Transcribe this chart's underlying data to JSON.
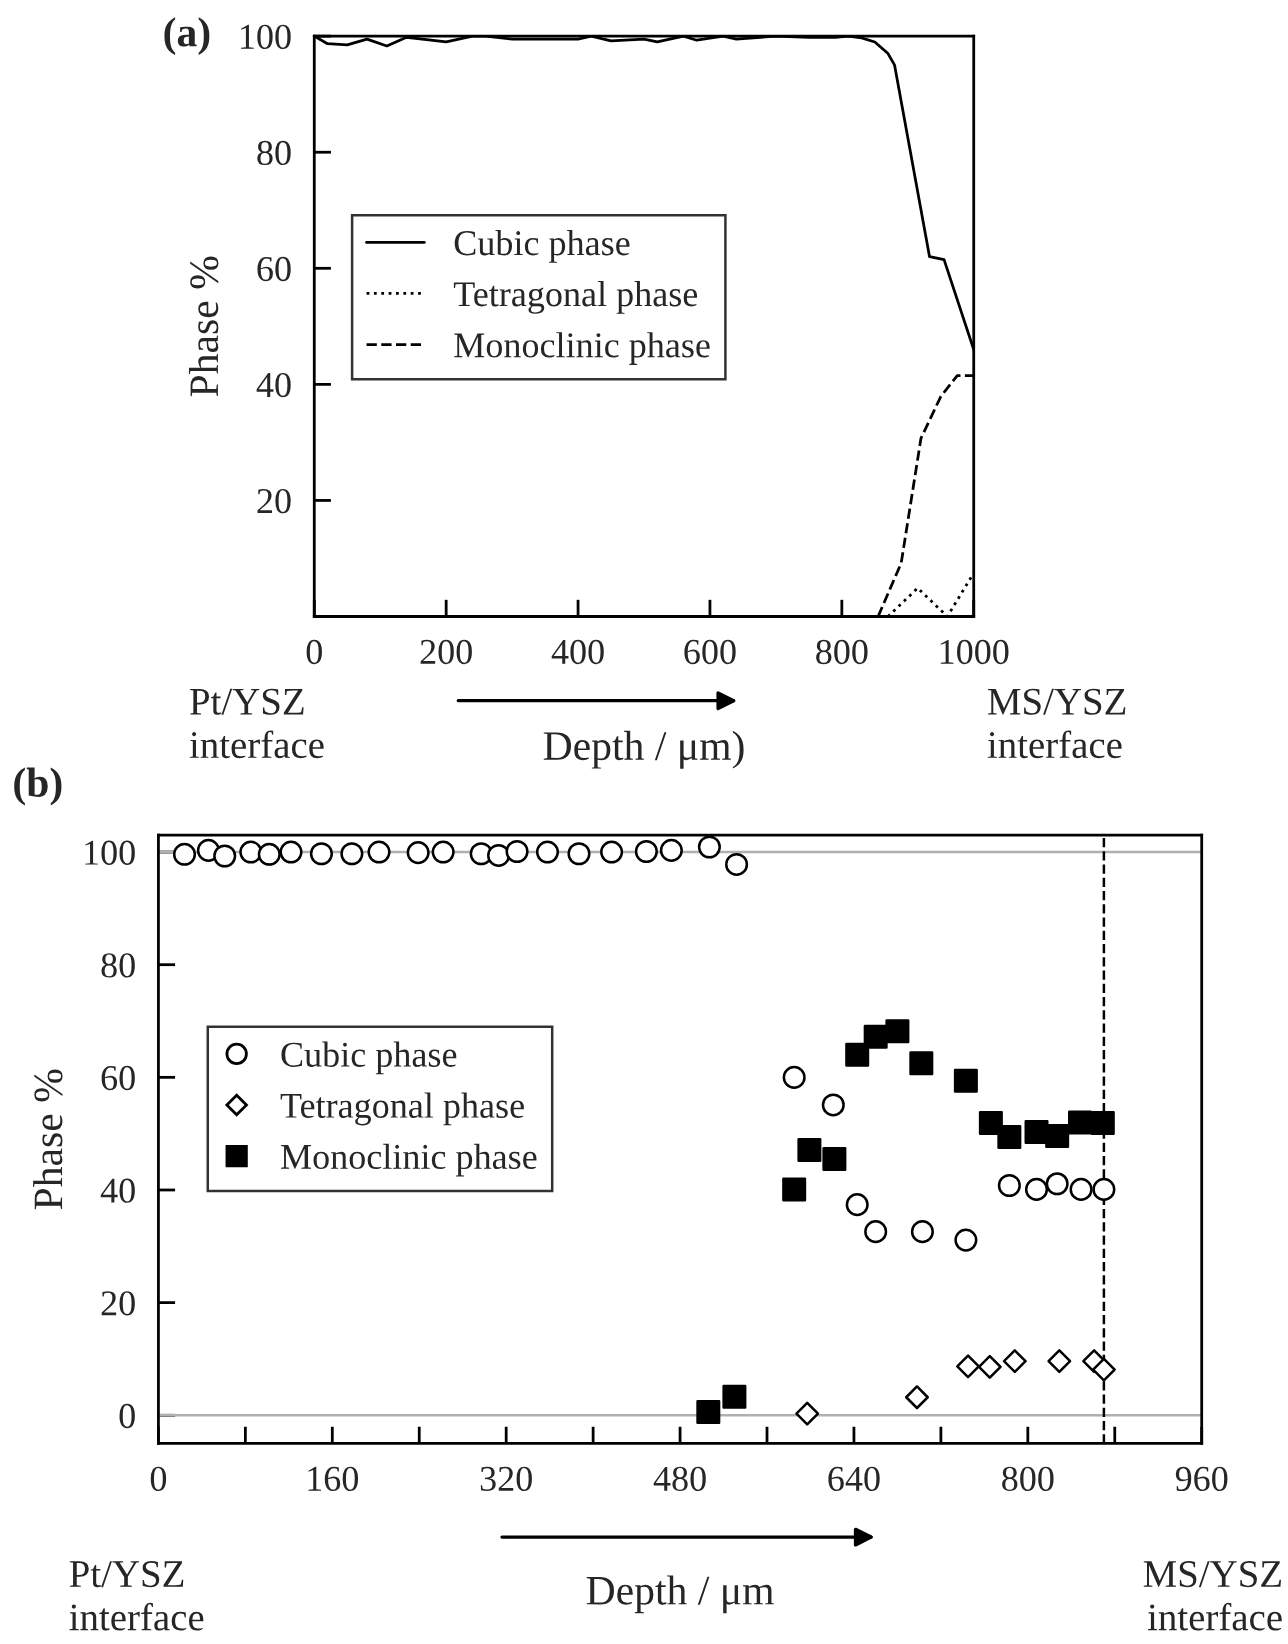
{
  "chart_data": [
    {
      "type": "line",
      "title": "(a)",
      "xlabel": "Depth / μm)",
      "ylabel": "Phase %",
      "annotations": [
        "Pt/YSZ\ninterface",
        "MS/YSZ\ninterface"
      ],
      "xlim": [
        0,
        1000
      ],
      "xticks": [
        0,
        200,
        400,
        600,
        800,
        1000
      ],
      "ylim": [
        0,
        100
      ],
      "yticks": [
        20,
        40,
        60,
        80,
        100
      ],
      "grid": false,
      "legend": "left",
      "marker": "none",
      "series": [
        {
          "name": "Cubic phase",
          "color": "#000000",
          "line_style": "solid",
          "x": [
            0,
            20,
            50,
            80,
            110,
            140,
            200,
            240,
            260,
            300,
            400,
            420,
            450,
            500,
            520,
            560,
            580,
            620,
            640,
            700,
            750,
            790,
            810,
            830,
            850,
            870,
            880,
            933,
            955,
            1000
          ],
          "values": [
            100,
            98.7,
            98.5,
            99.5,
            98.3,
            99.8,
            99,
            100,
            100,
            99.5,
            99.5,
            100,
            99.2,
            99.5,
            99,
            100,
            99.3,
            100,
            99.5,
            100,
            99.8,
            99.8,
            100,
            99.7,
            99,
            97,
            95,
            62,
            61.5,
            46
          ]
        },
        {
          "name": "Tetragonal phase",
          "color": "#000000",
          "line_style": "dotted",
          "x": [
            870,
            915,
            960,
            1000
          ],
          "values": [
            0,
            4.9,
            0,
            7.5
          ]
        },
        {
          "name": "Monoclinic phase",
          "color": "#000000",
          "line_style": "dashed",
          "x": [
            855,
            890,
            920,
            950,
            975,
            1000
          ],
          "values": [
            0,
            9.2,
            30.7,
            37.9,
            41.5,
            41.5
          ]
        }
      ]
    },
    {
      "type": "scatter",
      "title": "(b)",
      "xlabel": "Depth / μm",
      "ylabel": "Phase %",
      "annotations": [
        "Pt/YSZ\ninterface",
        "MS/YSZ\ninterface"
      ],
      "xlim": [
        0,
        960
      ],
      "xticks": [
        0,
        {
          "value": 80,
          "label": null
        },
        160,
        {
          "value": 240,
          "label": null
        },
        320,
        {
          "value": 400,
          "label": null
        },
        480,
        {
          "value": 560,
          "label": null
        },
        640,
        {
          "value": 720,
          "label": null
        },
        800,
        {
          "value": 880,
          "label": null
        },
        960
      ],
      "ylim": [
        -5,
        103
      ],
      "yticks": [
        0,
        20,
        40,
        60,
        80,
        100
      ],
      "grid": false,
      "legend": "left",
      "ref_lines": [
        {
          "axis": "y",
          "value": 0,
          "color": "#b0b0b0",
          "line_style": "solid"
        },
        {
          "axis": "y",
          "value": 100,
          "color": "#b0b0b0",
          "line_style": "solid"
        },
        {
          "axis": "x",
          "value": 870,
          "color": "#000000",
          "line_style": "dashed"
        }
      ],
      "series": [
        {
          "name": "Cubic phase",
          "color": "#000000",
          "marker": "circle",
          "x": [
            24,
            46,
            61,
            85,
            102,
            122,
            150,
            178,
            203,
            239,
            262,
            297,
            313,
            330,
            358,
            387,
            417,
            449,
            472,
            507,
            532,
            585,
            621,
            643,
            660,
            703,
            743,
            783,
            808,
            827,
            849,
            870
          ],
          "values": [
            99.6,
            100.3,
            99.3,
            100,
            99.6,
            100,
            99.7,
            99.7,
            100,
            99.9,
            100,
            99.7,
            99.4,
            100.1,
            100,
            99.7,
            100,
            100.1,
            100.3,
            100.9,
            97.8,
            60,
            55.1,
            37.4,
            32.6,
            32.6,
            31.1,
            40.8,
            40.1,
            41.1,
            40.1,
            40.1
          ]
        },
        {
          "name": "Tetragonal phase",
          "color": "#000000",
          "marker": "diamond",
          "x": [
            597,
            698,
            745,
            765,
            788,
            829,
            861,
            870
          ],
          "values": [
            0.3,
            3.2,
            8.7,
            8.6,
            9.6,
            9.6,
            9.6,
            8.1
          ]
        },
        {
          "name": "Monoclinic phase",
          "color": "#000000",
          "marker": "square",
          "x": [
            506,
            530,
            585,
            599,
            622,
            643,
            660,
            680,
            702,
            743,
            766,
            783,
            808,
            827,
            848,
            869
          ],
          "values": [
            0.6,
            3.3,
            40.1,
            47.1,
            45.5,
            64,
            67.2,
            68.2,
            62.5,
            59.4,
            51.9,
            49.4,
            50.3,
            49.6,
            52,
            51.9
          ]
        }
      ]
    }
  ]
}
